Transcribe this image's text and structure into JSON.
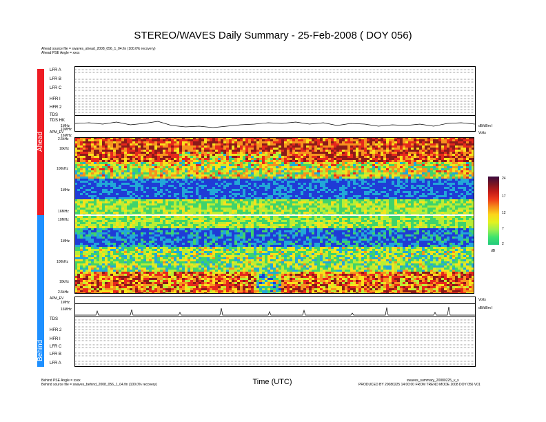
{
  "title": "STEREO/WAVES Daily Summary - 25-Feb-2008 ( DOY 056)",
  "ahead": {
    "source_file": "Ahead source file = swaves_ahead_2008_056_1_04.fin (100.0% recovery)",
    "pse_angle": "Ahead PSE Angle = xxxx",
    "side_label": "Ahead"
  },
  "behind": {
    "source_file": "Behind source file = swaves_behind_2008_056_1_04.fin (100.0% recovery)",
    "pse_angle": "Behind PSE Angle = xxxx",
    "side_label": "Behind"
  },
  "footer_right": {
    "line1": "swaves_summary_20080225_v_s",
    "line2": "PRODUCED BY 20080225 14:00:00 FROM TREND MODE 2008 DOY 056 V01"
  },
  "x_axis_title": "Time (UTC)",
  "panel_labels_ahead": [
    "LFR A",
    "LFR B",
    "LFR C",
    "HFR I",
    "HFR 2",
    "TDS",
    "TDS HK"
  ],
  "panel_labels_behind": [
    "TDS",
    "HFR 2",
    "HFR I",
    "LFR C",
    "LFR B",
    "LFR A"
  ],
  "spectrogram_freq_labels_ahead": [
    "2.5kHz",
    "10kHz",
    "100kHz",
    "1MHz",
    "16MHz"
  ],
  "spectrogram_freq_labels_behind": [
    "10MHz",
    "1MHz",
    "100kHz",
    "10kHz",
    "2.5kHz"
  ],
  "trace_labels": {
    "tds_hk_freq": [
      "1MHz",
      "10MHz",
      "16MHz"
    ],
    "apm_top": "APM_EV",
    "apm_bottom": "APM_EV",
    "right_top_unit": "dB/dBm I",
    "right_volts": "Volts"
  },
  "colorbar": {
    "unit": "dB",
    "ticks": [
      24,
      17,
      12,
      7,
      2
    ],
    "colors": [
      "#3b0b3f",
      "#7a1522",
      "#c21b18",
      "#ee3a1a",
      "#f58d1b",
      "#fbd51b",
      "#e3f21f",
      "#9cf04e",
      "#3ee36e",
      "#22c97c"
    ]
  },
  "chart_data": {
    "type": "heatmap",
    "title": "STEREO/WAVES Daily Summary - 25-Feb-2008 ( DOY 056)",
    "xlabel": "Time (UTC)",
    "ylabel": "",
    "zlabel": "dB",
    "zlim": [
      2,
      24
    ],
    "panels": [
      {
        "name": "Ahead",
        "freq_ticks": [
          "2.5kHz",
          "10kHz",
          "100kHz",
          "1MHz",
          "16MHz"
        ]
      },
      {
        "name": "Behind",
        "freq_ticks": [
          "10MHz",
          "1MHz",
          "100kHz",
          "10kHz",
          "2.5kHz"
        ]
      }
    ]
  }
}
